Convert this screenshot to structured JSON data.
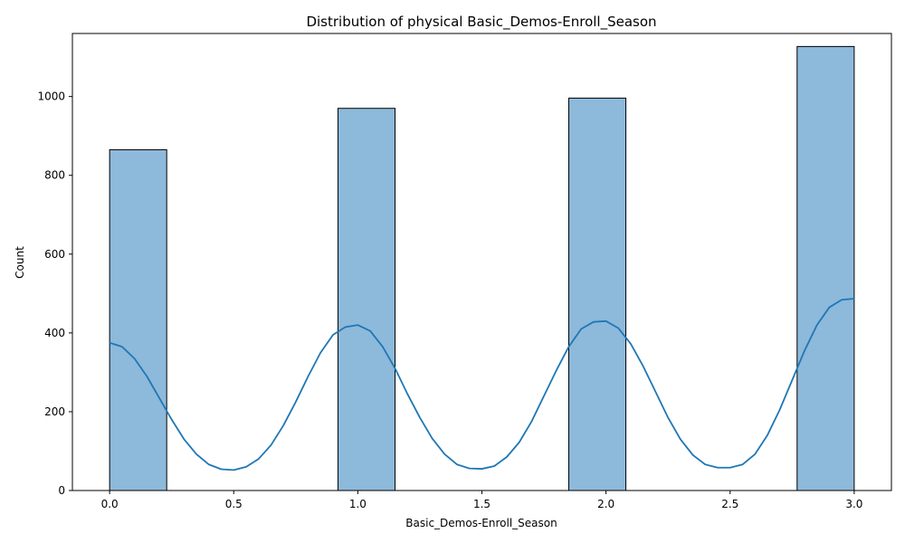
{
  "chart_data": {
    "type": "bar",
    "title": "Distribution of physical Basic_Demos-Enroll_Season",
    "xlabel": "Basic_Demos-Enroll_Season",
    "ylabel": "Count",
    "xlim": [
      -0.15,
      3.15
    ],
    "ylim": [
      0,
      1160
    ],
    "xticks": [
      0.0,
      0.5,
      1.0,
      1.5,
      2.0,
      2.5,
      3.0
    ],
    "xtick_labels": [
      "0.0",
      "0.5",
      "1.0",
      "1.5",
      "2.0",
      "2.5",
      "3.0"
    ],
    "yticks": [
      0,
      200,
      400,
      600,
      800,
      1000
    ],
    "ytick_labels": [
      "0",
      "200",
      "400",
      "600",
      "800",
      "1000"
    ],
    "bin_width": 0.23,
    "bars": [
      {
        "x0": 0.0,
        "x1": 0.23,
        "value": 865
      },
      {
        "x0": 0.92,
        "x1": 1.15,
        "value": 970
      },
      {
        "x0": 1.85,
        "x1": 2.08,
        "value": 996
      },
      {
        "x0": 2.77,
        "x1": 3.0,
        "value": 1127
      }
    ],
    "kde": {
      "x": [
        0.0,
        0.05,
        0.1,
        0.15,
        0.2,
        0.25,
        0.3,
        0.35,
        0.4,
        0.45,
        0.5,
        0.55,
        0.6,
        0.65,
        0.7,
        0.75,
        0.8,
        0.85,
        0.9,
        0.95,
        1.0,
        1.05,
        1.1,
        1.15,
        1.2,
        1.25,
        1.3,
        1.35,
        1.4,
        1.45,
        1.5,
        1.55,
        1.6,
        1.65,
        1.7,
        1.75,
        1.8,
        1.85,
        1.9,
        1.95,
        2.0,
        2.05,
        2.1,
        2.15,
        2.2,
        2.25,
        2.3,
        2.35,
        2.4,
        2.45,
        2.5,
        2.55,
        2.6,
        2.65,
        2.7,
        2.75,
        2.8,
        2.85,
        2.9,
        2.95,
        3.0
      ],
      "y": [
        375,
        365,
        335,
        290,
        235,
        180,
        130,
        92,
        66,
        54,
        52,
        60,
        80,
        115,
        165,
        225,
        290,
        350,
        395,
        415,
        420,
        405,
        365,
        310,
        245,
        185,
        132,
        92,
        66,
        56,
        55,
        62,
        85,
        122,
        175,
        240,
        305,
        365,
        410,
        428,
        430,
        412,
        372,
        315,
        250,
        185,
        130,
        90,
        66,
        58,
        58,
        66,
        92,
        140,
        205,
        280,
        355,
        420,
        465,
        484,
        487
      ]
    },
    "colors": {
      "bar_fill": "#8db9db",
      "bar_edge": "#000000",
      "kde_line": "#1f77b4"
    },
    "grid": false,
    "legend": "none"
  }
}
